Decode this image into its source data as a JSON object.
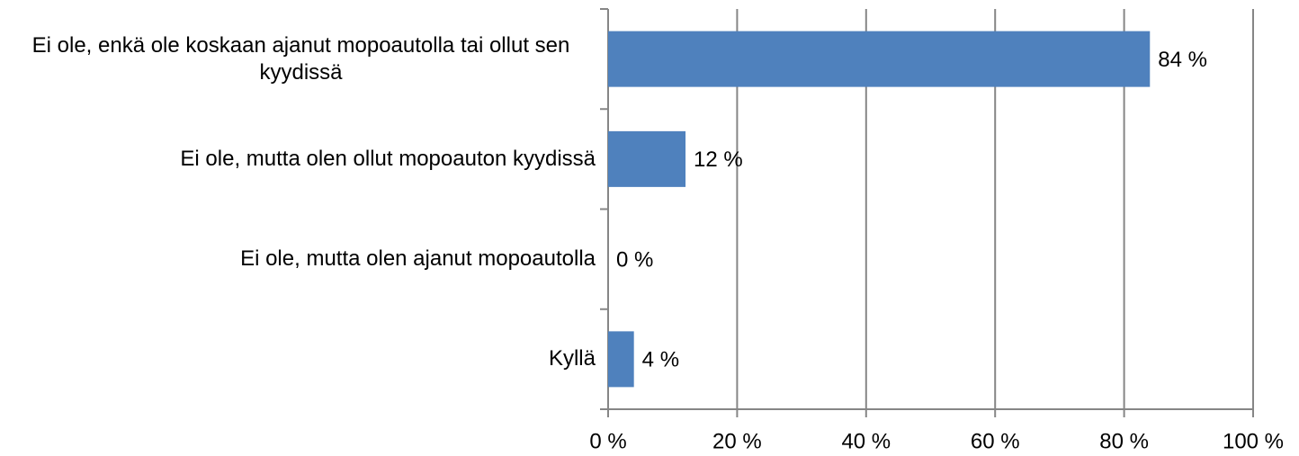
{
  "chart_data": {
    "type": "bar",
    "orientation": "horizontal",
    "categories": [
      "Ei ole, enkä ole koskaan ajanut mopoautolla tai ollut sen kyydissä",
      "Ei ole, mutta olen ollut mopoauton kyydissä",
      "Ei ole, mutta olen ajanut mopoautolla",
      "Kyllä"
    ],
    "values": [
      84,
      12,
      0,
      4
    ],
    "value_labels": [
      "84 %",
      "12 %",
      "0 %",
      "4 %"
    ],
    "color": "#4f81bd",
    "xlim": [
      0,
      100
    ],
    "xticks": [
      {
        "value": 0,
        "label": "0 %"
      },
      {
        "value": 20,
        "label": "20 %"
      },
      {
        "value": 40,
        "label": "40 %"
      },
      {
        "value": 60,
        "label": "60 %"
      },
      {
        "value": 80,
        "label": "80 %"
      },
      {
        "value": 100,
        "label": "100 %"
      }
    ],
    "grid": true
  }
}
